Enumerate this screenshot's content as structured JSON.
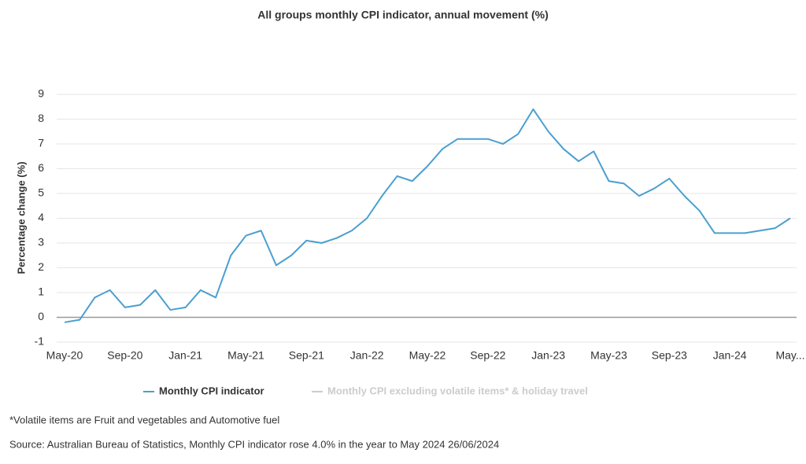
{
  "chart_data": {
    "type": "line",
    "title": "All groups monthly CPI indicator, annual movement (%)",
    "y_label": "Percentage change (%)",
    "categories": [
      "May-20",
      null,
      null,
      null,
      "Sep-20",
      null,
      null,
      null,
      "Jan-21",
      null,
      null,
      null,
      "May-21",
      null,
      null,
      null,
      "Sep-21",
      null,
      null,
      null,
      "Jan-22",
      null,
      null,
      null,
      "May-22",
      null,
      null,
      null,
      "Sep-22",
      null,
      null,
      null,
      "Jan-23",
      null,
      null,
      null,
      "May-23",
      null,
      null,
      null,
      "Sep-23",
      null,
      null,
      null,
      "Jan-24",
      null,
      null,
      null,
      "May..."
    ],
    "series": [
      {
        "name": "Monthly CPI indicator",
        "color": "#4a9fd0",
        "values": [
          -0.2,
          -0.1,
          0.8,
          1.1,
          0.4,
          0.5,
          1.1,
          0.3,
          0.4,
          1.1,
          0.8,
          2.5,
          3.3,
          3.5,
          2.1,
          2.5,
          3.1,
          3.0,
          3.2,
          3.5,
          4.0,
          4.9,
          5.7,
          5.5,
          6.1,
          6.8,
          7.2,
          7.2,
          7.2,
          7.0,
          7.4,
          8.4,
          7.5,
          6.8,
          6.3,
          6.7,
          5.5,
          5.4,
          4.9,
          5.2,
          5.6,
          4.9,
          4.3,
          3.4,
          3.4,
          3.4,
          3.5,
          3.6,
          4.0
        ]
      },
      {
        "name": "Monthly CPI excluding volatile items* & holiday travel",
        "color": "#cccccc",
        "hidden": true,
        "values": [
          null,
          null,
          null,
          null,
          null,
          null,
          null,
          null,
          null,
          null,
          null,
          null,
          null,
          null,
          null,
          null,
          null,
          null,
          null,
          null,
          null,
          null,
          null,
          null,
          null,
          null,
          null,
          null,
          null,
          null,
          null,
          null,
          null,
          null,
          null,
          null,
          null,
          null,
          null,
          null,
          null,
          null,
          null,
          null,
          null,
          null,
          null,
          null,
          null
        ]
      }
    ],
    "ylim": [
      -1,
      9
    ],
    "yticks": [
      -1,
      0,
      1,
      2,
      3,
      4,
      5,
      6,
      7,
      8,
      9
    ],
    "grid": true,
    "legend": "bottom",
    "footnote": "*Volatile items are Fruit and vegetables and Automotive fuel",
    "source": "Source: Australian Bureau of Statistics, Monthly CPI indicator rose 4.0% in the year to May 2024 26/06/2024"
  }
}
